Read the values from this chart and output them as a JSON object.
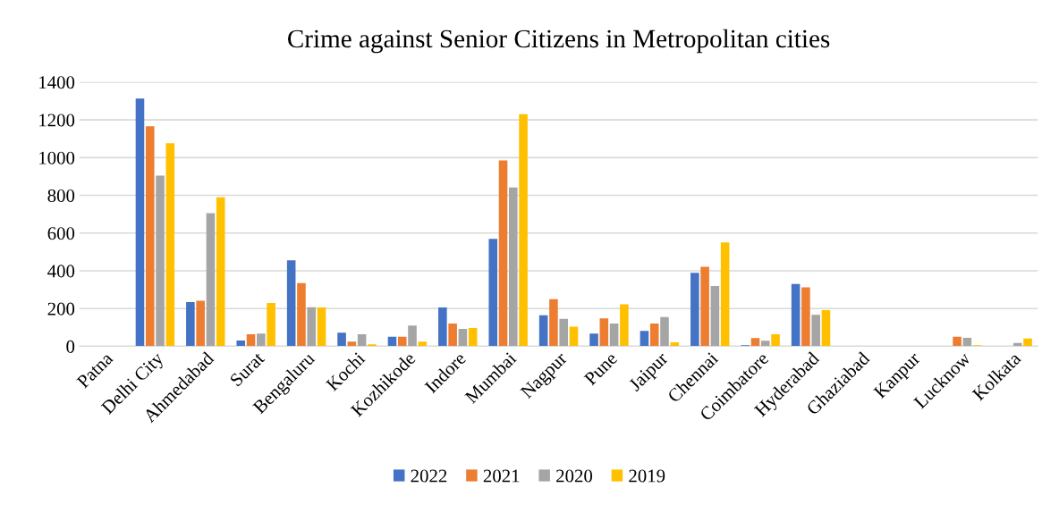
{
  "chart_data": {
    "type": "bar",
    "title": "Crime against Senior Citizens in Metropolitan cities",
    "categories": [
      "Patna",
      "Delhi City",
      "Ahmedabad",
      "Surat",
      "Bengaluru",
      "Kochi",
      "Kozhikode",
      "Indore",
      "Mumbai",
      "Nagpur",
      "Pune",
      "Jaipur",
      "Chennai",
      "Coimbatore",
      "Hyderabad",
      "Ghaziabad",
      "Kanpur",
      "Lucknow",
      "Kolkata"
    ],
    "series": [
      {
        "name": "2022",
        "color": "#4472c4",
        "values": [
          0,
          1313,
          234,
          30,
          456,
          72,
          51,
          206,
          569,
          164,
          67,
          81,
          389,
          6,
          330,
          0,
          0,
          0,
          0
        ]
      },
      {
        "name": "2021",
        "color": "#ed7d31",
        "values": [
          0,
          1166,
          241,
          64,
          335,
          25,
          51,
          121,
          985,
          249,
          148,
          120,
          421,
          43,
          312,
          0,
          0,
          51,
          0
        ]
      },
      {
        "name": "2020",
        "color": "#a5a5a5",
        "values": [
          0,
          904,
          706,
          67,
          207,
          64,
          110,
          92,
          841,
          145,
          120,
          155,
          320,
          29,
          167,
          0,
          0,
          45,
          18
        ]
      },
      {
        "name": "2019",
        "color": "#ffc000",
        "values": [
          0,
          1076,
          790,
          229,
          206,
          10,
          25,
          97,
          1230,
          104,
          222,
          21,
          550,
          64,
          191,
          0,
          0,
          6,
          41
        ]
      }
    ],
    "ylim": [
      0,
      1400
    ],
    "yticks": [
      0,
      200,
      400,
      600,
      800,
      1000,
      1200,
      1400
    ],
    "grid": "y",
    "legend": "bottom"
  }
}
